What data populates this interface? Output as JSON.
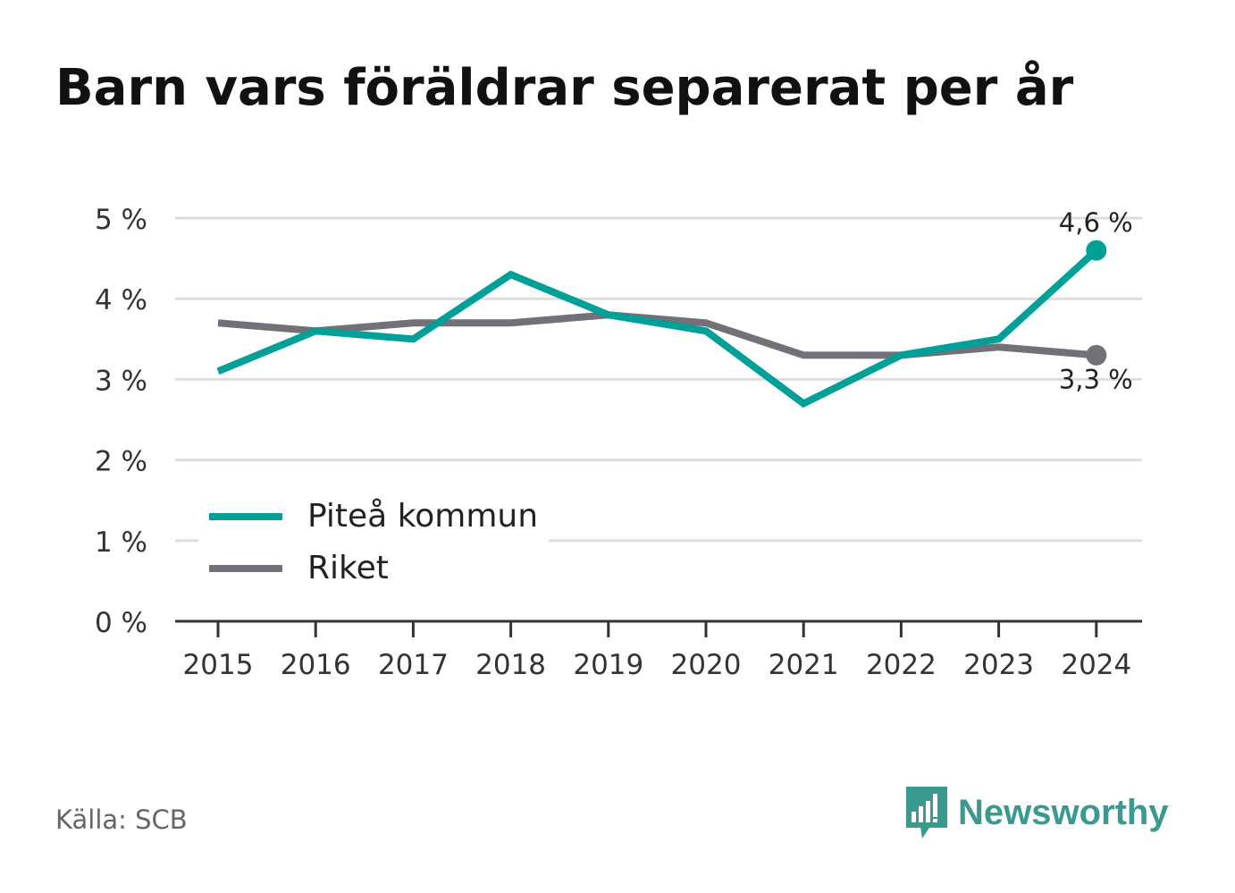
{
  "title": "Barn vars föräldrar separerat per år",
  "source": "Källa: SCB",
  "brand": "Newsworthy",
  "colors": {
    "pitea": "#00a098",
    "riket": "#727177",
    "grid": "#dddddd",
    "axis": "#333333",
    "brand": "#3a9a90"
  },
  "chart_data": {
    "type": "line",
    "x": [
      "2015",
      "2016",
      "2017",
      "2018",
      "2019",
      "2020",
      "2021",
      "2022",
      "2023",
      "2024"
    ],
    "series": [
      {
        "name": "Piteå kommun",
        "values": [
          3.1,
          3.6,
          3.5,
          4.3,
          3.8,
          3.6,
          2.7,
          3.3,
          3.5,
          4.6
        ]
      },
      {
        "name": "Riket",
        "values": [
          3.7,
          3.6,
          3.7,
          3.7,
          3.8,
          3.7,
          3.3,
          3.3,
          3.4,
          3.3
        ]
      }
    ],
    "y_ticks": [
      "0 %",
      "1 %",
      "2 %",
      "3 %",
      "4 %",
      "5 %"
    ],
    "ylim": [
      0,
      5
    ],
    "grid": true,
    "legend_position": "bottom-left",
    "end_labels": [
      "4,6 %",
      "3,3 %"
    ]
  }
}
